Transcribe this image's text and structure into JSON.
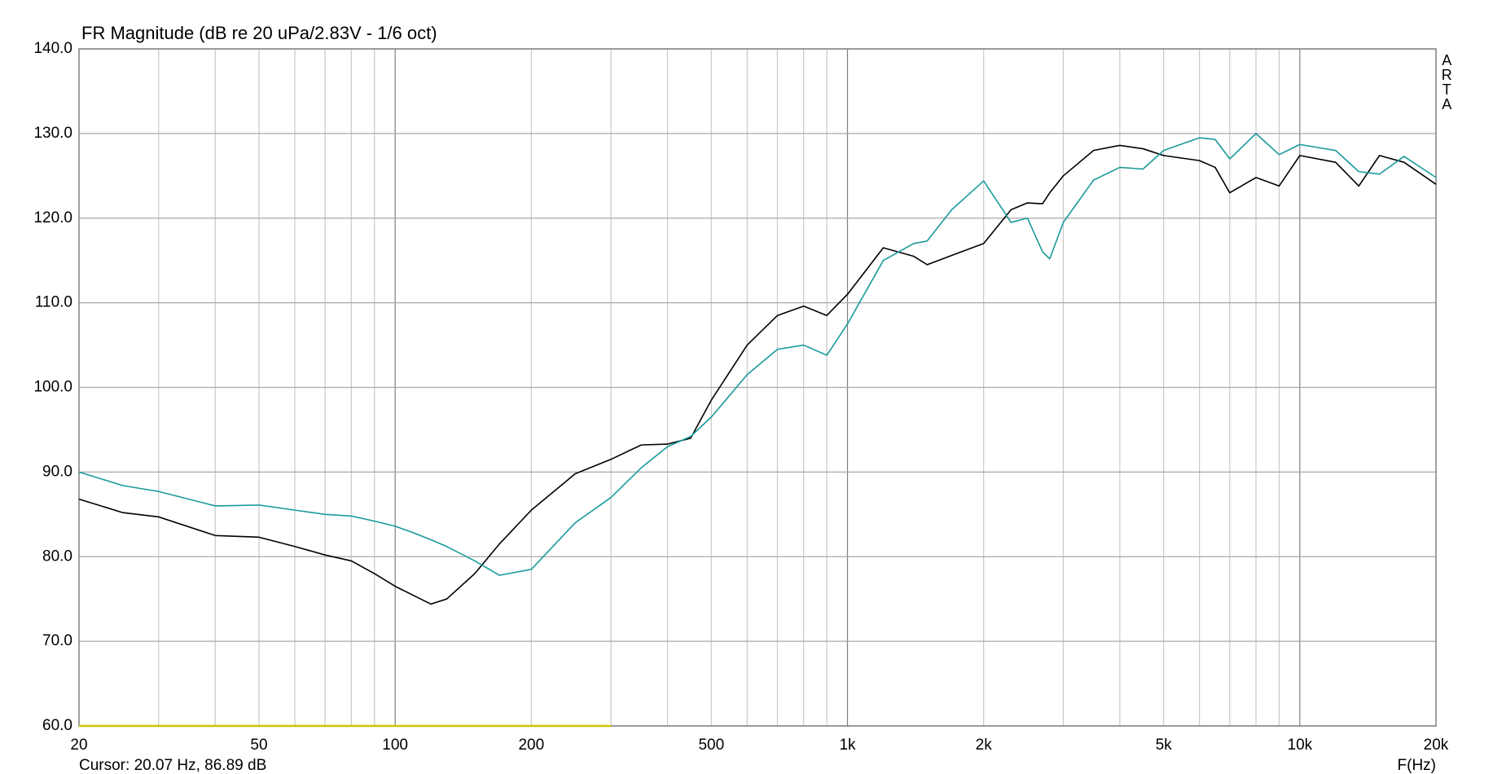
{
  "chart_data": {
    "type": "line",
    "title": "FR Magnitude (dB re 20 uPa/2.83V - 1/6 oct)",
    "xlabel": "F(Hz)",
    "watermark": "ARTA",
    "cursor_text": "Cursor: 20.07 Hz, 86.89 dB",
    "xscale": "log",
    "grid": true,
    "xlim": [
      20,
      20000
    ],
    "ylim": [
      60,
      140
    ],
    "xticks": [
      20,
      50,
      100,
      200,
      500,
      {
        "value": 1000,
        "label": "1k"
      },
      {
        "value": 2000,
        "label": "2k"
      },
      {
        "value": 5000,
        "label": "5k"
      },
      {
        "value": 10000,
        "label": "10k"
      },
      {
        "value": 20000,
        "label": "20k"
      }
    ],
    "xgrid": [
      30,
      40,
      50,
      60,
      70,
      80,
      90,
      100,
      200,
      300,
      400,
      500,
      600,
      700,
      800,
      900,
      1000,
      2000,
      3000,
      4000,
      5000,
      6000,
      7000,
      8000,
      9000,
      10000
    ],
    "yticks": [
      {
        "value": 60,
        "label": "60.0"
      },
      {
        "value": 70,
        "label": "70.0"
      },
      {
        "value": 80,
        "label": "80.0"
      },
      {
        "value": 90,
        "label": "90.0"
      },
      {
        "value": 100,
        "label": "100.0"
      },
      {
        "value": 110,
        "label": "110.0"
      },
      {
        "value": 120,
        "label": "120.0"
      },
      {
        "value": 130,
        "label": "130.0"
      },
      {
        "value": 140,
        "label": "140.0"
      }
    ],
    "x": [
      20,
      25,
      30,
      40,
      50,
      60,
      70,
      80,
      90,
      100,
      110,
      120,
      130,
      150,
      170,
      200,
      250,
      300,
      350,
      400,
      450,
      500,
      600,
      700,
      800,
      900,
      1000,
      1200,
      1400,
      1500,
      1700,
      2000,
      2300,
      2500,
      2700,
      2800,
      3000,
      3500,
      4000,
      4500,
      5000,
      6000,
      6500,
      7000,
      8000,
      9000,
      10000,
      12000,
      13500,
      15000,
      17000,
      20000
    ],
    "series": [
      {
        "color": "#000000",
        "values": [
          86.8,
          85.2,
          84.7,
          82.5,
          82.3,
          81.2,
          80.2,
          79.5,
          78.0,
          76.5,
          75.4,
          74.4,
          75.0,
          78.0,
          81.5,
          85.5,
          89.8,
          91.5,
          93.2,
          93.3,
          94.0,
          98.5,
          105.0,
          108.5,
          109.6,
          108.5,
          111.0,
          116.5,
          115.5,
          114.5,
          115.6,
          117.0,
          121.0,
          121.8,
          121.7,
          123.0,
          125.0,
          128.0,
          128.6,
          128.2,
          127.4,
          126.8,
          126.0,
          123.0,
          124.8,
          123.8,
          127.4,
          126.6,
          123.8,
          127.4,
          126.6,
          124.0
        ]
      },
      {
        "color": "#1a9a9a",
        "values": [
          90.0,
          88.4,
          87.7,
          86.0,
          86.1,
          85.5,
          85.0,
          84.8,
          84.2,
          83.6,
          82.8,
          82.0,
          81.2,
          79.5,
          77.8,
          78.5,
          84.0,
          87.0,
          90.5,
          93.0,
          94.2,
          96.5,
          101.5,
          104.5,
          105.0,
          103.8,
          107.5,
          115.0,
          117.0,
          117.3,
          121.0,
          124.4,
          119.5,
          120.0,
          116.0,
          115.2,
          119.5,
          124.5,
          126.0,
          125.8,
          128.0,
          129.5,
          129.3,
          127.0,
          130.0,
          127.5,
          128.7,
          128.0,
          125.5,
          125.2,
          127.3,
          124.8
        ]
      },
      {
        "color": "#c8c800",
        "values": [
          60,
          60,
          60,
          60,
          60,
          60,
          60,
          60,
          60,
          60,
          60,
          60,
          60,
          60,
          60,
          60,
          60,
          60,
          null,
          null,
          null,
          null,
          null,
          null,
          null,
          null,
          null,
          null,
          null,
          null,
          null,
          null,
          null,
          null,
          null,
          null,
          null,
          null,
          null,
          null,
          null,
          null,
          null,
          null,
          null,
          null,
          null,
          null,
          null,
          null,
          null,
          null
        ]
      }
    ]
  }
}
